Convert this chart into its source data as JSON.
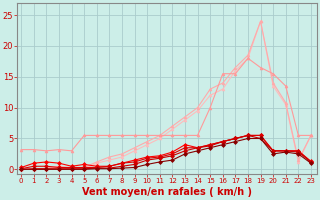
{
  "background_color": "#cceee8",
  "grid_color": "#aacccc",
  "xlabel": "Vent moyen/en rafales ( km/h )",
  "xlabel_color": "#cc0000",
  "xlabel_fontsize": 7,
  "ylabel_ticks": [
    0,
    5,
    10,
    15,
    20,
    25
  ],
  "x_ticks": [
    0,
    1,
    2,
    3,
    4,
    5,
    6,
    7,
    8,
    9,
    10,
    11,
    12,
    13,
    14,
    15,
    16,
    17,
    18,
    19,
    20,
    21,
    22,
    23
  ],
  "xlim": [
    -0.3,
    23.5
  ],
  "ylim": [
    -0.8,
    27
  ],
  "series": [
    {
      "name": "line1_lightest",
      "color": "#ffbbbb",
      "linewidth": 0.8,
      "marker": "^",
      "markersize": 2,
      "y": [
        0.0,
        0.0,
        0.0,
        0.5,
        0.0,
        0.0,
        1.0,
        1.5,
        2.0,
        3.0,
        4.0,
        5.0,
        6.5,
        8.0,
        9.5,
        12.0,
        13.0,
        16.0,
        18.0,
        24.0,
        13.5,
        10.5,
        1.2,
        5.5
      ]
    },
    {
      "name": "line2_light",
      "color": "#ffaaaa",
      "linewidth": 0.8,
      "marker": "^",
      "markersize": 2,
      "y": [
        0.0,
        0.0,
        0.2,
        0.5,
        0.2,
        0.3,
        1.2,
        2.0,
        2.5,
        3.5,
        4.5,
        5.5,
        7.0,
        8.5,
        10.0,
        13.0,
        14.0,
        16.5,
        18.5,
        24.0,
        14.0,
        10.8,
        1.5,
        5.5
      ]
    },
    {
      "name": "line3_medium",
      "color": "#ff9999",
      "linewidth": 0.8,
      "marker": "^",
      "markersize": 2,
      "y": [
        3.2,
        3.2,
        3.0,
        3.2,
        3.0,
        5.5,
        5.5,
        5.5,
        5.5,
        5.5,
        5.5,
        5.5,
        5.5,
        5.5,
        5.5,
        10.0,
        15.5,
        15.5,
        18.0,
        16.5,
        15.5,
        13.5,
        5.5,
        5.5
      ]
    },
    {
      "name": "line4_dark1",
      "color": "#ff0000",
      "linewidth": 0.8,
      "marker": "D",
      "markersize": 2,
      "y": [
        0.3,
        1.0,
        1.2,
        1.0,
        0.5,
        0.8,
        0.5,
        0.5,
        1.0,
        1.5,
        2.0,
        2.2,
        2.8,
        4.0,
        3.5,
        4.0,
        4.5,
        5.0,
        5.5,
        5.5,
        3.0,
        3.0,
        3.0,
        1.3
      ]
    },
    {
      "name": "line5_dark2",
      "color": "#dd0000",
      "linewidth": 0.8,
      "marker": "D",
      "markersize": 2,
      "y": [
        0.1,
        0.5,
        0.5,
        0.3,
        0.3,
        0.3,
        0.3,
        0.5,
        1.0,
        1.2,
        1.8,
        2.0,
        2.5,
        3.5,
        3.5,
        4.0,
        4.5,
        5.0,
        5.5,
        5.5,
        3.0,
        3.0,
        3.0,
        1.2
      ]
    },
    {
      "name": "line6_dark3",
      "color": "#cc0000",
      "linewidth": 0.8,
      "marker": "D",
      "markersize": 2,
      "y": [
        0.0,
        0.1,
        0.1,
        0.1,
        0.1,
        0.1,
        0.2,
        0.2,
        0.5,
        0.8,
        1.5,
        1.8,
        2.2,
        3.0,
        3.5,
        3.8,
        4.5,
        5.0,
        5.5,
        5.0,
        3.0,
        3.0,
        2.8,
        1.2
      ]
    },
    {
      "name": "line7_dark4",
      "color": "#880000",
      "linewidth": 0.8,
      "marker": "D",
      "markersize": 2,
      "y": [
        0.0,
        0.0,
        0.0,
        0.0,
        0.0,
        0.0,
        0.1,
        0.1,
        0.2,
        0.3,
        0.8,
        1.2,
        1.5,
        2.5,
        3.0,
        3.5,
        4.0,
        4.5,
        5.0,
        5.0,
        2.5,
        2.8,
        2.5,
        1.0
      ]
    }
  ]
}
